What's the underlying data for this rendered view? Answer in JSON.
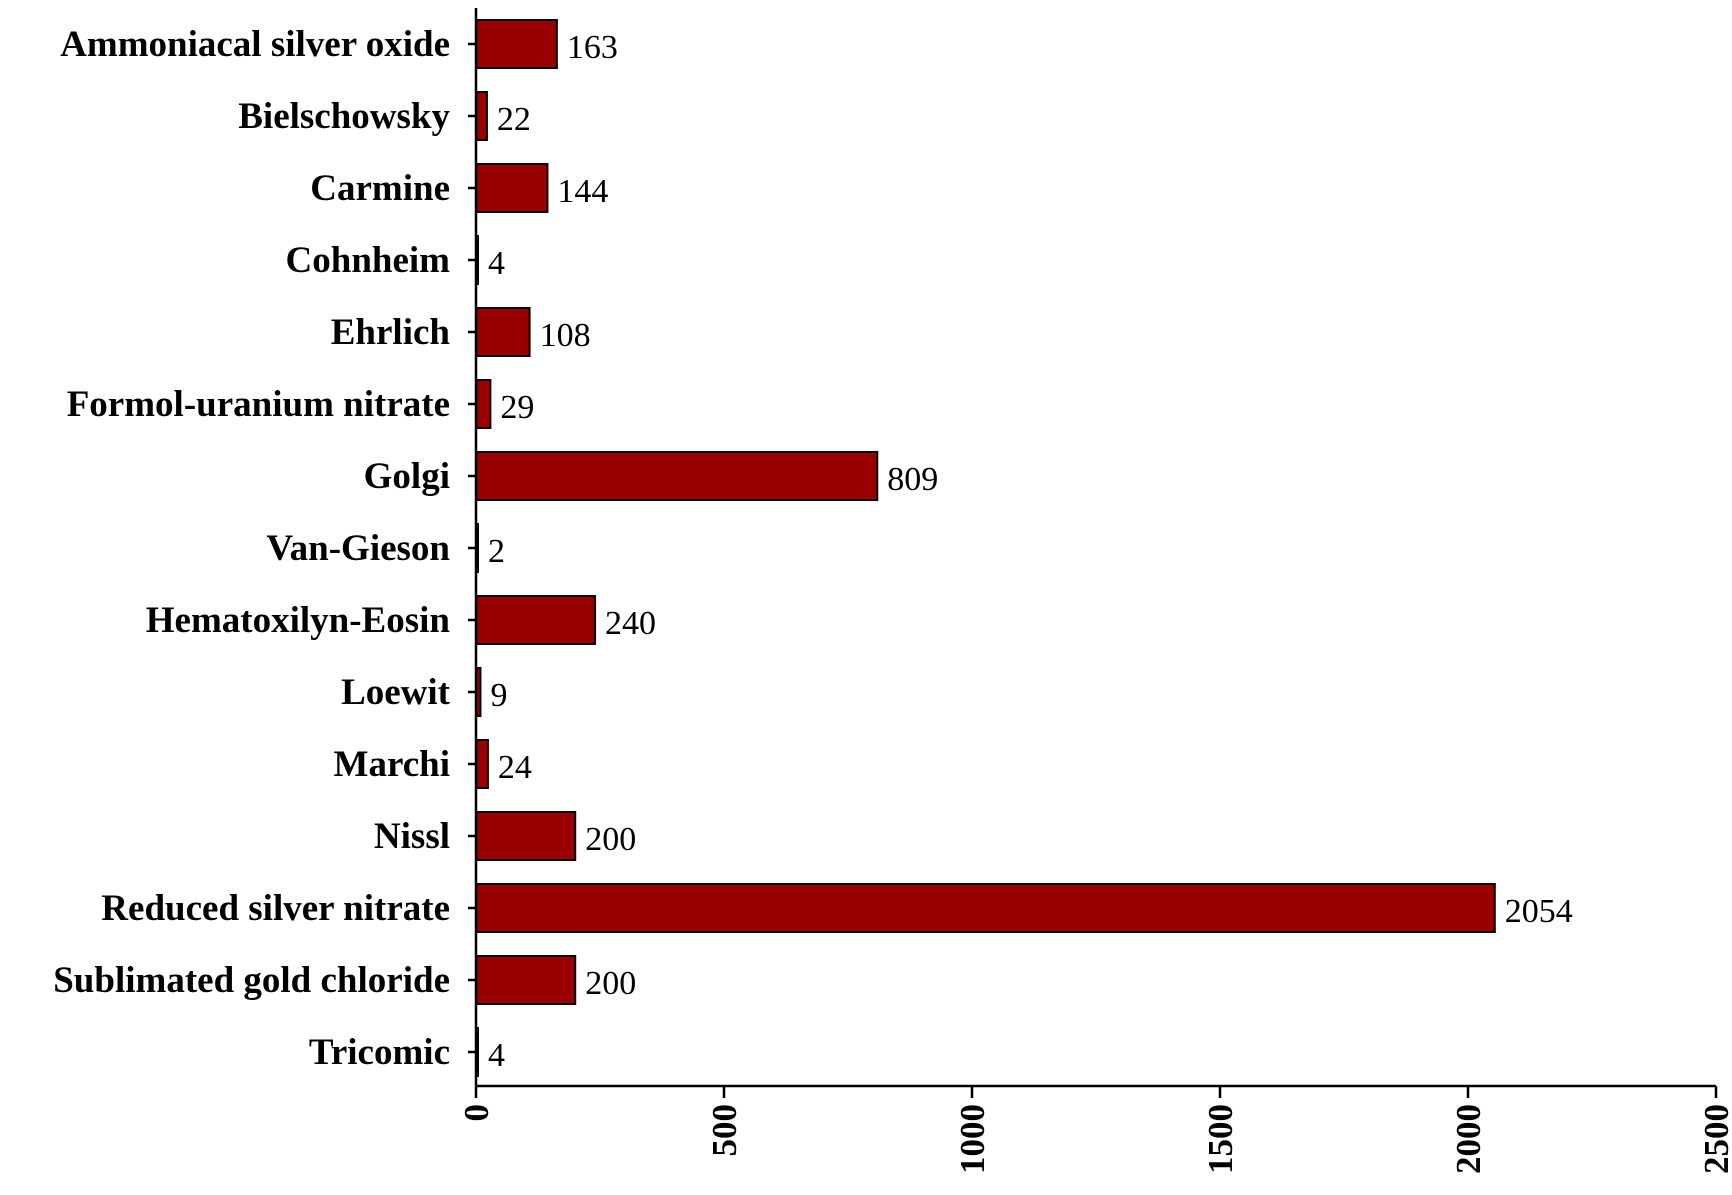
{
  "chart_data": {
    "type": "bar",
    "orientation": "horizontal",
    "title": "",
    "xlabel": "",
    "ylabel": "",
    "categories": [
      "Ammoniacal silver oxide",
      "Bielschowsky",
      "Carmine",
      "Cohnheim",
      "Ehrlich",
      "Formol-uranium nitrate",
      "Golgi",
      "Van-Gieson",
      "Hematoxilyn-Eosin",
      "Loewit",
      "Marchi",
      "Nissl",
      "Reduced silver nitrate",
      "Sublimated gold chloride",
      "Tricomic"
    ],
    "values": [
      163,
      22,
      144,
      4,
      108,
      29,
      809,
      2,
      240,
      9,
      24,
      200,
      2054,
      200,
      4
    ],
    "value_labels": [
      "163",
      "22",
      "144",
      "4",
      "108",
      "29",
      "809",
      "2",
      "240",
      "9",
      "24",
      "200",
      "2054",
      "200",
      "4"
    ],
    "xlim": [
      0,
      2500
    ],
    "x_ticks": [
      0,
      500,
      1000,
      1500,
      2000,
      2500
    ],
    "x_tick_labels": [
      "0",
      "500",
      "1000",
      "1500",
      "2000",
      "2500"
    ],
    "bar_color": "#9b0000",
    "grid": false,
    "legend": "none"
  }
}
